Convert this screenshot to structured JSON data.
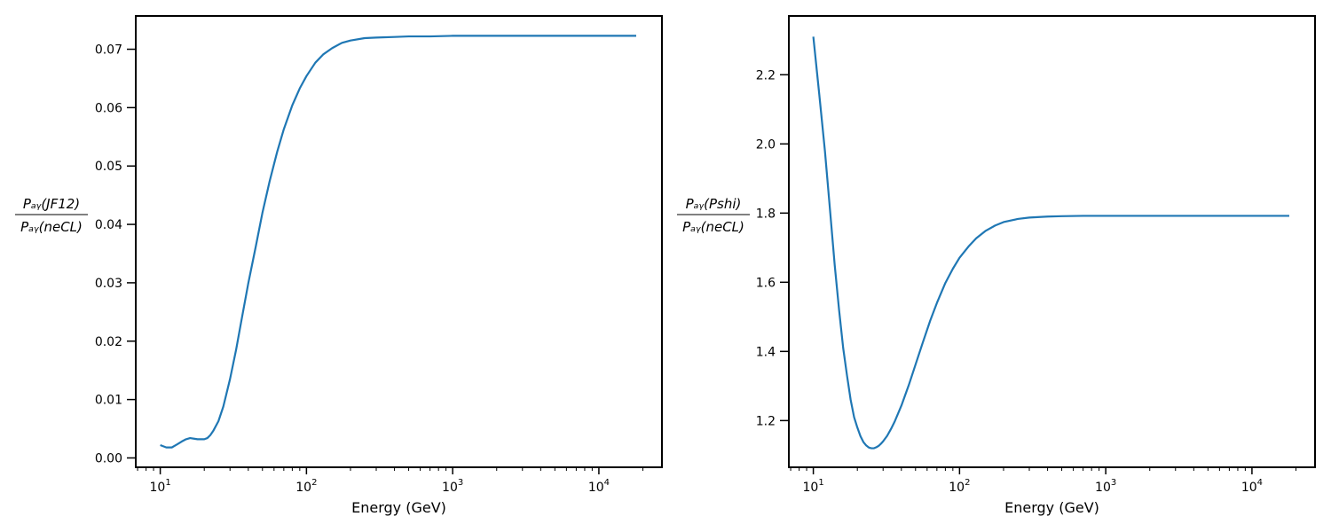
{
  "chart_data": [
    {
      "type": "line",
      "xlabel": "Energy (GeV)",
      "ylabel": {
        "numerator": "Pₐᵧ(JF12)",
        "denominator": "Pₐᵧ(neCL)"
      },
      "xscale": "log",
      "xlim": [
        6.8,
        27000
      ],
      "ylim": [
        -0.0016,
        0.0757
      ],
      "xticks": [
        {
          "value": 10,
          "base": "10",
          "exp": "1"
        },
        {
          "value": 100,
          "base": "10",
          "exp": "2"
        },
        {
          "value": 1000,
          "base": "10",
          "exp": "3"
        },
        {
          "value": 10000,
          "base": "10",
          "exp": "4"
        }
      ],
      "yticks": [
        0.0,
        0.01,
        0.02,
        0.03,
        0.04,
        0.05,
        0.06,
        0.07
      ],
      "ytick_labels": [
        "0.00",
        "0.01",
        "0.02",
        "0.03",
        "0.04",
        "0.05",
        "0.06",
        "0.07"
      ],
      "series": [
        {
          "color": "#1f77b4",
          "x": [
            10,
            11,
            12,
            13,
            14,
            15,
            16,
            17,
            18,
            19,
            20,
            21,
            22,
            23,
            25,
            27,
            30,
            33,
            36,
            40,
            45,
            50,
            56,
            63,
            70,
            80,
            90,
            100,
            115,
            130,
            150,
            175,
            200,
            250,
            300,
            400,
            500,
            700,
            1000,
            1500,
            2000,
            3000,
            5000,
            10000,
            18000
          ],
          "y": [
            0.0022,
            0.0018,
            0.0018,
            0.0023,
            0.0028,
            0.0032,
            0.0034,
            0.0033,
            0.0032,
            0.0032,
            0.0032,
            0.0034,
            0.0039,
            0.0046,
            0.0063,
            0.0088,
            0.0135,
            0.0185,
            0.0237,
            0.0299,
            0.0362,
            0.042,
            0.0474,
            0.0524,
            0.0563,
            0.0604,
            0.0633,
            0.0654,
            0.0677,
            0.0691,
            0.0702,
            0.0711,
            0.0715,
            0.0719,
            0.072,
            0.0721,
            0.0722,
            0.0722,
            0.0723,
            0.0723,
            0.0723,
            0.0723,
            0.0723,
            0.0723,
            0.0723
          ]
        }
      ]
    },
    {
      "type": "line",
      "xlabel": "Energy (GeV)",
      "ylabel": {
        "numerator": "Pₐᵧ(Pshi)",
        "denominator": "Pₐᵧ(neCL)"
      },
      "xscale": "log",
      "xlim": [
        6.8,
        27000
      ],
      "ylim": [
        1.065,
        2.37
      ],
      "xticks": [
        {
          "value": 10,
          "base": "10",
          "exp": "1"
        },
        {
          "value": 100,
          "base": "10",
          "exp": "2"
        },
        {
          "value": 1000,
          "base": "10",
          "exp": "3"
        },
        {
          "value": 10000,
          "base": "10",
          "exp": "4"
        }
      ],
      "yticks": [
        1.2,
        1.4,
        1.6,
        1.8,
        2.0,
        2.2
      ],
      "ytick_labels": [
        "1.2",
        "1.4",
        "1.6",
        "1.8",
        "2.0",
        "2.2"
      ],
      "series": [
        {
          "color": "#1f77b4",
          "x": [
            10,
            11,
            12,
            13,
            14,
            15,
            16,
            17,
            18,
            19,
            20,
            21,
            22,
            23,
            24,
            25,
            26,
            27,
            28,
            29,
            30,
            32,
            34,
            36,
            40,
            45,
            50,
            56,
            63,
            70,
            80,
            90,
            100,
            115,
            130,
            150,
            175,
            200,
            250,
            300,
            400,
            500,
            700,
            1000,
            2000,
            5000,
            10000,
            18000
          ],
          "y": [
            2.31,
            2.14,
            1.98,
            1.81,
            1.65,
            1.52,
            1.41,
            1.33,
            1.26,
            1.21,
            1.18,
            1.155,
            1.138,
            1.128,
            1.122,
            1.12,
            1.12,
            1.123,
            1.127,
            1.133,
            1.14,
            1.156,
            1.176,
            1.197,
            1.243,
            1.303,
            1.362,
            1.425,
            1.489,
            1.54,
            1.598,
            1.639,
            1.671,
            1.703,
            1.727,
            1.748,
            1.764,
            1.774,
            1.783,
            1.787,
            1.79,
            1.791,
            1.792,
            1.792,
            1.792,
            1.792,
            1.792,
            1.792
          ]
        }
      ]
    }
  ]
}
